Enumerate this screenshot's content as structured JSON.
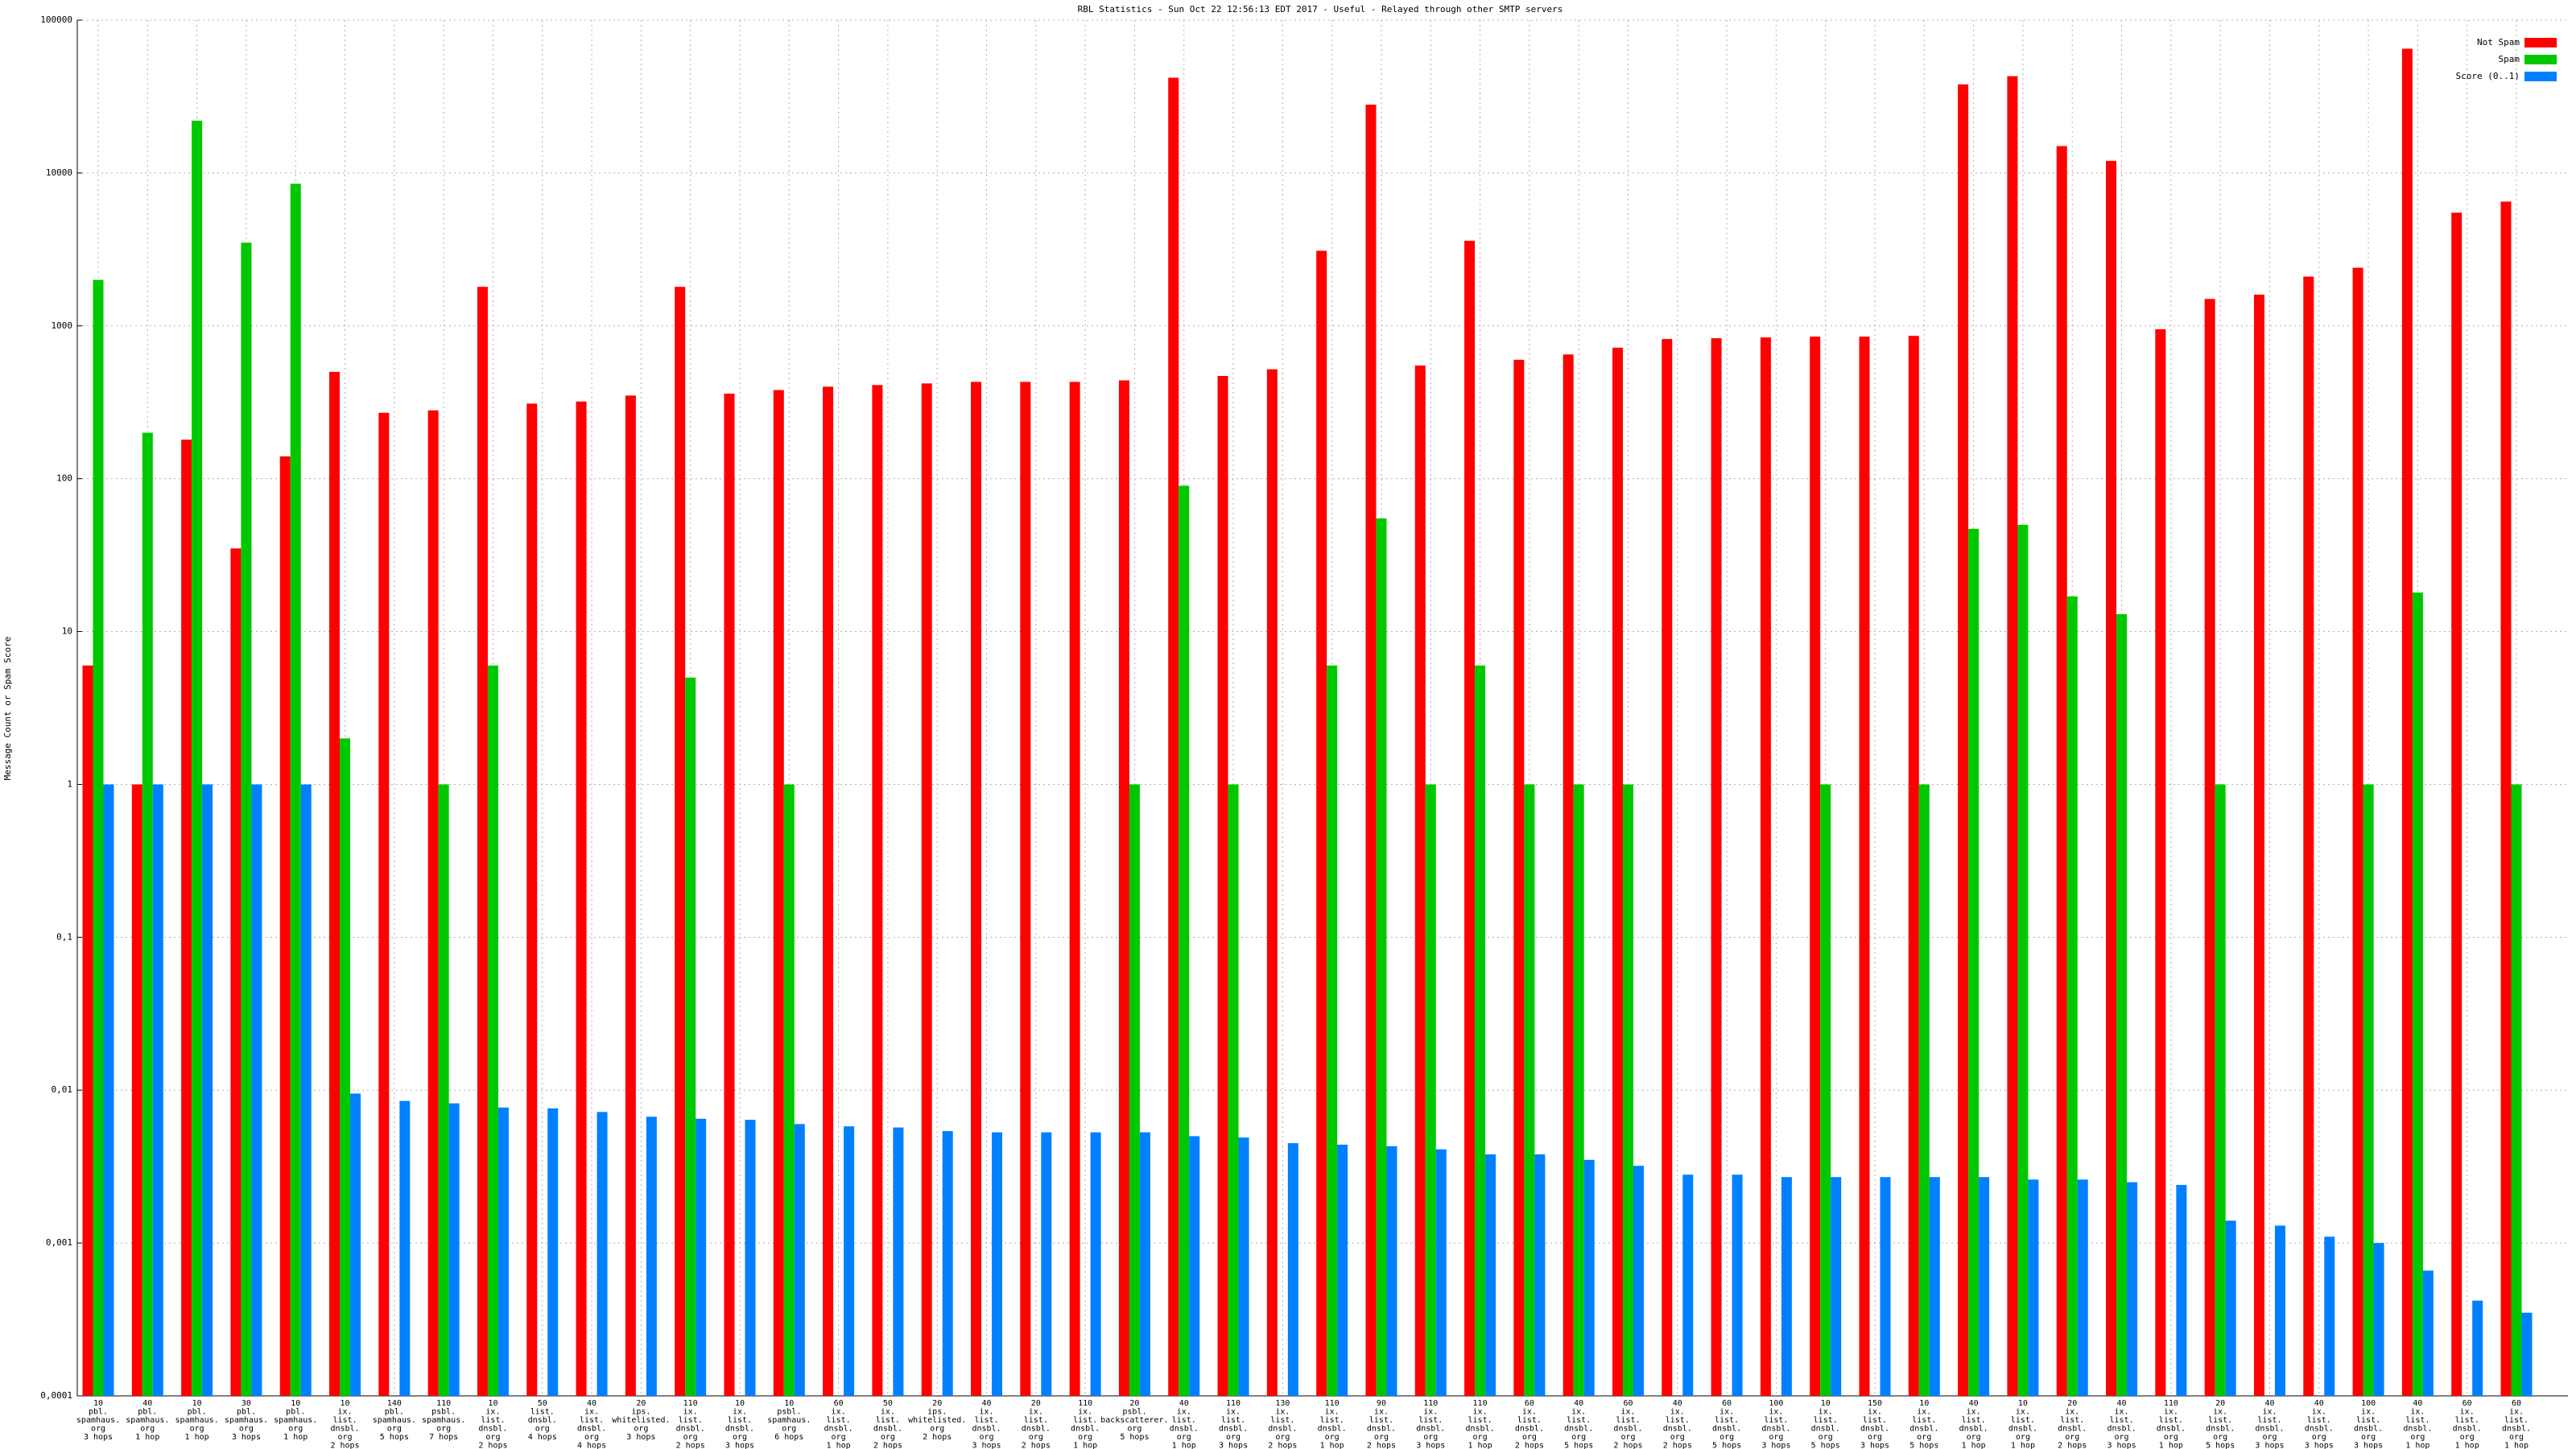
{
  "chart_data": {
    "type": "bar",
    "title": "RBL Statistics - Sun Oct 22 12:56:13 EDT 2017 - Useful - Relayed through other SMTP servers",
    "y_label": "Message Count or Spam Score",
    "log_y": true,
    "grid": true,
    "legend": "top-right",
    "ylim": [
      0.0001,
      100000
    ],
    "yticks": [
      {
        "value": 0.0001,
        "label": "0,0001"
      },
      {
        "value": 0.001,
        "label": "0,001"
      },
      {
        "value": 0.01,
        "label": "0,01"
      },
      {
        "value": 0.1,
        "label": "0,1"
      },
      1,
      10,
      100,
      1000,
      10000,
      100000
    ],
    "categories": [
      [
        "10",
        "pbl.",
        "spamhaus.",
        "org",
        "3 hops"
      ],
      [
        "40",
        "pbl.",
        "spamhaus.",
        "org",
        "1 hop"
      ],
      [
        "10",
        "pbl.",
        "spamhaus.",
        "org",
        "1 hop"
      ],
      [
        "30",
        "pbl.",
        "spamhaus.",
        "org",
        "3 hops"
      ],
      [
        "10",
        "pbl.",
        "spamhaus.",
        "org",
        "1 hop"
      ],
      [
        "10",
        "ix.",
        "list.",
        "dnsbl.",
        "org",
        "2 hops"
      ],
      [
        "140",
        "pbl.",
        "spamhaus.",
        "org",
        "5 hops"
      ],
      [
        "110",
        "psbl.",
        "spamhaus.",
        "org",
        "7 hops"
      ],
      [
        "10",
        "ix.",
        "list.",
        "dnsbl.",
        "org",
        "2 hops"
      ],
      [
        "50",
        "list.",
        "dnsbl.",
        "org",
        "4 hops"
      ],
      [
        "40",
        "ix.",
        "list.",
        "dnsbl.",
        "org",
        "4 hops"
      ],
      [
        "20",
        "ips.",
        "whitelisted.",
        "org",
        "3 hops"
      ],
      [
        "110",
        "ix.",
        "list.",
        "dnsbl.",
        "org",
        "2 hops"
      ],
      [
        "10",
        "ix.",
        "list.",
        "dnsbl.",
        "org",
        "3 hops"
      ],
      [
        "10",
        "psbl.",
        "spamhaus.",
        "org",
        "6 hops"
      ],
      [
        "60",
        "ix.",
        "list.",
        "dnsbl.",
        "org",
        "1 hop"
      ],
      [
        "50",
        "ix.",
        "list.",
        "dnsbl.",
        "org",
        "2 hops"
      ],
      [
        "20",
        "ips.",
        "whitelisted.",
        "org",
        "2 hops"
      ],
      [
        "40",
        "ix.",
        "list.",
        "dnsbl.",
        "org",
        "3 hops"
      ],
      [
        "20",
        "ix.",
        "list.",
        "dnsbl.",
        "org",
        "2 hops"
      ],
      [
        "110",
        "ix.",
        "list.",
        "dnsbl.",
        "org",
        "1 hop"
      ],
      [
        "20",
        "psbl.",
        "backscatterer.",
        "org",
        "5 hops"
      ],
      [
        "40",
        "ix.",
        "list.",
        "dnsbl.",
        "org",
        "1 hop"
      ],
      [
        "110",
        "ix.",
        "list.",
        "dnsbl.",
        "org",
        "3 hops"
      ],
      [
        "130",
        "ix.",
        "list.",
        "dnsbl.",
        "org",
        "2 hops"
      ],
      [
        "110",
        "ix.",
        "list.",
        "dnsbl.",
        "org",
        "1 hop"
      ],
      [
        "90",
        "ix.",
        "list.",
        "dnsbl.",
        "org",
        "2 hops"
      ],
      [
        "110",
        "ix.",
        "list.",
        "dnsbl.",
        "org",
        "3 hops"
      ],
      [
        "110",
        "ix.",
        "list.",
        "dnsbl.",
        "org",
        "1 hop"
      ],
      [
        "60",
        "ix.",
        "list.",
        "dnsbl.",
        "org",
        "2 hops"
      ],
      [
        "40",
        "ix.",
        "list.",
        "dnsbl.",
        "org",
        "5 hops"
      ],
      [
        "60",
        "ix.",
        "list.",
        "dnsbl.",
        "org",
        "2 hops"
      ],
      [
        "40",
        "ix.",
        "list.",
        "dnsbl.",
        "org",
        "2 hops"
      ],
      [
        "60",
        "ix.",
        "list.",
        "dnsbl.",
        "org",
        "5 hops"
      ],
      [
        "100",
        "ix.",
        "list.",
        "dnsbl.",
        "org",
        "3 hops"
      ],
      [
        "10",
        "ix.",
        "list.",
        "dnsbl.",
        "org",
        "5 hops"
      ],
      [
        "150",
        "ix.",
        "list.",
        "dnsbl.",
        "org",
        "3 hops"
      ],
      [
        "10",
        "ix.",
        "list.",
        "dnsbl.",
        "org",
        "5 hops"
      ],
      [
        "40",
        "ix.",
        "list.",
        "dnsbl.",
        "org",
        "1 hop"
      ],
      [
        "10",
        "ix.",
        "list.",
        "dnsbl.",
        "org",
        "1 hop"
      ],
      [
        "20",
        "ix.",
        "list.",
        "dnsbl.",
        "org",
        "2 hops"
      ],
      [
        "40",
        "ix.",
        "list.",
        "dnsbl.",
        "org",
        "3 hops"
      ],
      [
        "110",
        "ix.",
        "list.",
        "dnsbl.",
        "org",
        "1 hop"
      ],
      [
        "20",
        "ix.",
        "list.",
        "dnsbl.",
        "org",
        "5 hops"
      ],
      [
        "40",
        "ix.",
        "list.",
        "dnsbl.",
        "org",
        "3 hops"
      ],
      [
        "40",
        "ix.",
        "list.",
        "dnsbl.",
        "org",
        "3 hops"
      ],
      [
        "100",
        "ix.",
        "list.",
        "dnsbl.",
        "org",
        "3 hops"
      ],
      [
        "40",
        "ix.",
        "list.",
        "dnsbl.",
        "org",
        "1 hop"
      ],
      [
        "60",
        "ix.",
        "list.",
        "dnsbl.",
        "org",
        "1 hop"
      ],
      [
        "60",
        "ix.",
        "list.",
        "dnsbl.",
        "org",
        "1 hop"
      ]
    ],
    "series": [
      {
        "name": "Not Spam",
        "color": "#ff0000",
        "values": [
          6,
          1,
          180,
          35,
          140,
          500,
          270,
          280,
          1800,
          310,
          320,
          350,
          1800,
          360,
          380,
          400,
          410,
          420,
          430,
          430,
          430,
          440,
          42000,
          470,
          520,
          3100,
          28000,
          550,
          3600,
          600,
          650,
          720,
          820,
          830,
          840,
          850,
          850,
          860,
          38000,
          43000,
          15000,
          12000,
          950,
          1500,
          1600,
          2100,
          2400,
          65000,
          5500,
          6500
        ]
      },
      {
        "name": "Spam",
        "color": "#00c800",
        "values": [
          2000,
          200,
          22000,
          3500,
          8500,
          2,
          null,
          1,
          6,
          null,
          null,
          null,
          5,
          null,
          1,
          null,
          null,
          null,
          null,
          null,
          null,
          1,
          90,
          1,
          null,
          6,
          55,
          1,
          6,
          1,
          1,
          1,
          null,
          null,
          null,
          1,
          null,
          1,
          47,
          50,
          17,
          13,
          null,
          1,
          null,
          null,
          1,
          18,
          null,
          1
        ]
      },
      {
        "name": "Score (0..1)",
        "color": "#0080ff",
        "values": [
          1,
          1,
          1,
          1,
          1,
          0.0095,
          0.0085,
          0.0082,
          0.0077,
          0.0076,
          0.0072,
          0.0067,
          0.0065,
          0.0064,
          0.006,
          0.0058,
          0.0057,
          0.0054,
          0.0053,
          0.0053,
          0.0053,
          0.0053,
          0.005,
          0.0049,
          0.0045,
          0.0044,
          0.0043,
          0.0041,
          0.0038,
          0.0038,
          0.0035,
          0.0032,
          0.0028,
          0.0028,
          0.0027,
          0.0027,
          0.0027,
          0.0027,
          0.0027,
          0.0026,
          0.0026,
          0.0025,
          0.0024,
          0.0014,
          0.0013,
          0.0011,
          0.001,
          0.00066,
          0.00042,
          0.00035
        ]
      }
    ]
  }
}
